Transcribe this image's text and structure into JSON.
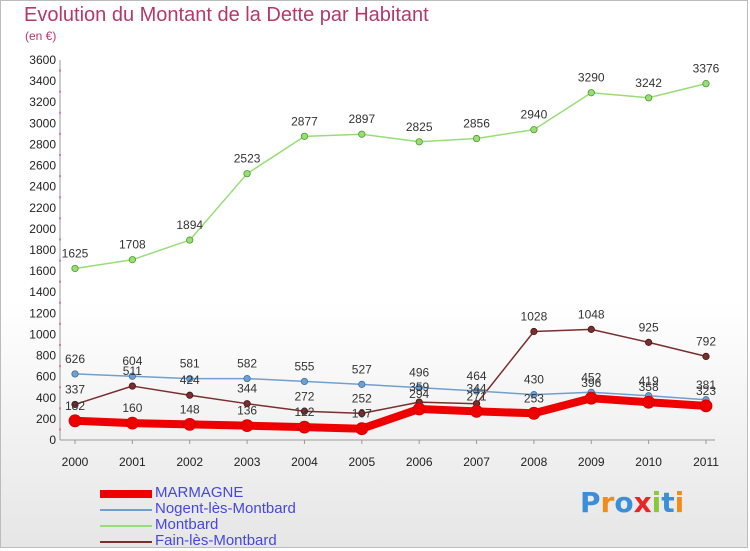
{
  "header": {
    "title": "Evolution du Montant de la Dette par Habitant",
    "unit": "(en €)"
  },
  "logo": {
    "text": "Proxiti",
    "letters": [
      "P",
      "r",
      "o",
      "x",
      "i",
      "t",
      "i"
    ],
    "letter_colors": [
      "#3b8fd6",
      "#f08c1a",
      "#3b8fd6",
      "#e8262a",
      "#8cc63f",
      "#3b8fd6",
      "#f08c1a"
    ]
  },
  "chart_data": {
    "type": "line",
    "title": "Evolution du Montant de la Dette par Habitant",
    "subtitle": "(en €)",
    "xlabel": "",
    "ylabel": "",
    "x": [
      "2000",
      "2001",
      "2002",
      "2003",
      "2004",
      "2005",
      "2006",
      "2007",
      "2008",
      "2009",
      "2010",
      "2011"
    ],
    "ylim": [
      0,
      3600
    ],
    "yticks": [
      0,
      200,
      400,
      600,
      800,
      1000,
      1200,
      1400,
      1600,
      1800,
      2000,
      2200,
      2400,
      2600,
      2800,
      3000,
      3200,
      3400,
      3600
    ],
    "grid": false,
    "legend_position": "bottom-left",
    "series": [
      {
        "name": "MARMAGNE",
        "color": "#ee0000",
        "values": [
          182,
          160,
          148,
          136,
          122,
          107,
          294,
          271,
          253,
          396,
          358,
          323
        ]
      },
      {
        "name": "Nogent-lès-Montbard",
        "color": "#6fa0cf",
        "values": [
          626,
          604,
          581,
          582,
          555,
          527,
          496,
          464,
          430,
          452,
          419,
          381
        ]
      },
      {
        "name": "Montbard",
        "color": "#99dd77",
        "values": [
          1625,
          1708,
          1894,
          2523,
          2877,
          2897,
          2825,
          2856,
          2940,
          3290,
          3242,
          3376
        ]
      },
      {
        "name": "Fain-lès-Montbard",
        "color": "#7a2e2e",
        "values": [
          337,
          511,
          424,
          344,
          272,
          252,
          359,
          344,
          1028,
          1048,
          925,
          792
        ]
      }
    ]
  }
}
